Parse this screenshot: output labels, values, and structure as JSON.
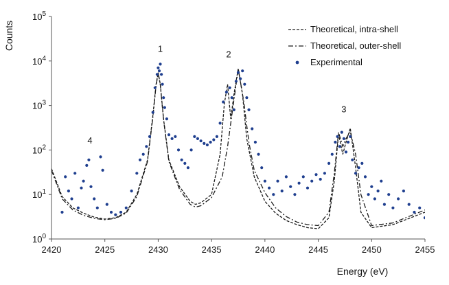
{
  "chart_data": {
    "type": "scatter",
    "title": "",
    "xlabel": "Energy (eV)",
    "ylabel": "Counts",
    "x_scale": "linear",
    "y_scale": "log",
    "xlim": [
      2420,
      2455
    ],
    "ylim": [
      1,
      100000
    ],
    "grid": false,
    "legend_position": "top-right",
    "x_ticks": [
      "2420",
      "2425",
      "2430",
      "2435",
      "2440",
      "2445",
      "2450",
      "2455"
    ],
    "y_ticks": [
      {
        "base": "10",
        "exp": "0",
        "value": 1
      },
      {
        "base": "10",
        "exp": "1",
        "value": 10
      },
      {
        "base": "10",
        "exp": "2",
        "value": 100
      },
      {
        "base": "10",
        "exp": "3",
        "value": 1000
      },
      {
        "base": "10",
        "exp": "4",
        "value": 10000
      },
      {
        "base": "10",
        "exp": "5",
        "value": 100000
      }
    ],
    "annotations": [
      {
        "text": "1",
        "x": 2430.2,
        "y": 16000
      },
      {
        "text": "2",
        "x": 2436.6,
        "y": 12000
      },
      {
        "text": "3",
        "x": 2447.4,
        "y": 700
      },
      {
        "text": "4",
        "x": 2423.6,
        "y": 140
      }
    ],
    "series": [
      {
        "name": "Theoretical, intra-shell",
        "kind": "line",
        "style": "dashed",
        "x": [
          2420,
          2421,
          2422,
          2423,
          2424,
          2425,
          2426,
          2427,
          2428,
          2429,
          2429.5,
          2429.8,
          2430,
          2430.2,
          2430.5,
          2431,
          2432,
          2433,
          2433.5,
          2434,
          2435,
          2435.8,
          2436.2,
          2436.5,
          2436.8,
          2437.1,
          2437.5,
          2437.9,
          2438.3,
          2439,
          2440,
          2441,
          2442,
          2443,
          2444,
          2445,
          2446,
          2446.5,
          2446.9,
          2447.3,
          2447.6,
          2448,
          2448.5,
          2449,
          2450,
          2452,
          2455
        ],
        "y": [
          38,
          9,
          5,
          3.8,
          3.1,
          2.8,
          3,
          4,
          10,
          60,
          600,
          3000,
          5500,
          3000,
          500,
          60,
          15,
          7,
          6,
          6.5,
          10,
          80,
          1100,
          3000,
          500,
          1800,
          6800,
          1800,
          180,
          25,
          7,
          3.8,
          2.6,
          2.1,
          1.8,
          1.7,
          3,
          20,
          230,
          80,
          150,
          310,
          40,
          4,
          1.8,
          2.1,
          4
        ]
      },
      {
        "name": "Theoretical, outer-shell",
        "kind": "line",
        "style": "dashdot",
        "x": [
          2420,
          2421,
          2422,
          2423,
          2424,
          2425,
          2426,
          2427,
          2428,
          2429,
          2429.5,
          2429.8,
          2430,
          2430.2,
          2430.5,
          2431,
          2432,
          2433,
          2433.5,
          2434,
          2435,
          2436,
          2436.5,
          2437,
          2437.5,
          2438,
          2438.5,
          2439,
          2440,
          2441,
          2442,
          2443,
          2444,
          2445,
          2446,
          2446.5,
          2446.9,
          2447.3,
          2447.6,
          2448,
          2448.5,
          2449,
          2450,
          2452,
          2455
        ],
        "y": [
          35,
          8,
          4.5,
          3.4,
          2.9,
          2.7,
          2.9,
          3.8,
          9,
          55,
          550,
          2800,
          5200,
          2900,
          480,
          55,
          13,
          6,
          5.2,
          5.6,
          8.5,
          25,
          120,
          900,
          6600,
          1300,
          150,
          35,
          11,
          5,
          3.2,
          2.4,
          2.1,
          2,
          4,
          30,
          250,
          120,
          180,
          260,
          80,
          10,
          2,
          2.3,
          4.5
        ]
      },
      {
        "name": "Experimental",
        "kind": "scatter",
        "style": "markers",
        "x": [
          2421,
          2421.3,
          2421.6,
          2421.9,
          2422.2,
          2422.5,
          2422.8,
          2423,
          2423.3,
          2423.5,
          2423.7,
          2424,
          2424.3,
          2424.6,
          2424.8,
          2425.2,
          2425.6,
          2426,
          2426.5,
          2427,
          2427.5,
          2428,
          2428.3,
          2428.6,
          2428.9,
          2429.2,
          2429.5,
          2429.7,
          2429.9,
          2430,
          2430.1,
          2430.2,
          2430.3,
          2430.4,
          2430.5,
          2430.6,
          2430.8,
          2431,
          2431.3,
          2431.6,
          2431.9,
          2432.2,
          2432.5,
          2432.8,
          2433.1,
          2433.4,
          2433.7,
          2434,
          2434.3,
          2434.6,
          2434.9,
          2435.2,
          2435.5,
          2435.8,
          2436.1,
          2436.4,
          2436.7,
          2436.9,
          2437.1,
          2437.3,
          2437.5,
          2437.7,
          2437.9,
          2438.1,
          2438.3,
          2438.5,
          2438.8,
          2439.1,
          2439.4,
          2439.7,
          2440,
          2440.4,
          2440.8,
          2441.2,
          2441.6,
          2442,
          2442.4,
          2442.8,
          2443.2,
          2443.6,
          2444,
          2444.4,
          2444.8,
          2445.2,
          2445.6,
          2446,
          2446.3,
          2446.6,
          2446.8,
          2447,
          2447.2,
          2447.4,
          2447.6,
          2447.8,
          2448,
          2448.2,
          2448.5,
          2448.8,
          2449.1,
          2449.4,
          2449.7,
          2450,
          2450.3,
          2450.6,
          2450.9,
          2451.2,
          2451.6,
          2452,
          2452.5,
          2453,
          2453.5,
          2454,
          2454.5,
          2455
        ],
        "y": [
          4,
          25,
          12,
          8,
          30,
          5,
          14,
          20,
          45,
          60,
          15,
          8,
          5,
          70,
          35,
          6,
          4,
          3.5,
          4,
          5,
          12,
          30,
          60,
          80,
          120,
          200,
          700,
          2500,
          5000,
          7000,
          6000,
          8500,
          5000,
          3000,
          1500,
          900,
          500,
          220,
          180,
          200,
          100,
          60,
          50,
          40,
          100,
          200,
          180,
          160,
          140,
          130,
          150,
          170,
          200,
          400,
          1200,
          2000,
          2500,
          1500,
          800,
          3500,
          5500,
          4000,
          6000,
          3000,
          1500,
          800,
          300,
          150,
          80,
          40,
          20,
          14,
          10,
          20,
          12,
          25,
          15,
          10,
          18,
          25,
          14,
          20,
          28,
          22,
          30,
          50,
          80,
          150,
          200,
          120,
          250,
          180,
          90,
          150,
          200,
          60,
          30,
          40,
          50,
          25,
          10,
          15,
          8,
          12,
          20,
          6,
          10,
          5,
          8,
          12,
          6,
          4,
          5,
          3
        ]
      }
    ]
  }
}
